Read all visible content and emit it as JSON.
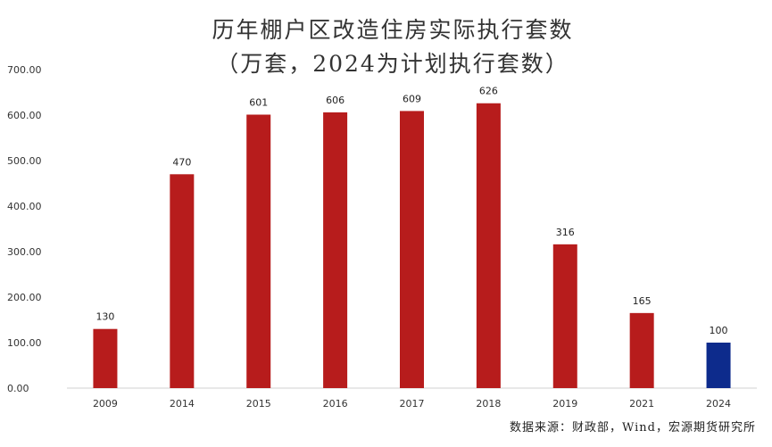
{
  "chart_data": {
    "type": "bar",
    "title": "历年棚户区改造住房实际执行套数",
    "subtitle": "（万套，2024为计划执行套数）",
    "categories": [
      "2009",
      "2014",
      "2015",
      "2016",
      "2017",
      "2018",
      "2019",
      "2021",
      "2024"
    ],
    "values": [
      130,
      470,
      601,
      606,
      609,
      626,
      316,
      165,
      100
    ],
    "data_labels": [
      "130",
      "470",
      "601",
      "606",
      "609",
      "626",
      "316",
      "165",
      "100"
    ],
    "y_ticks": [
      "0.00",
      "100.00",
      "200.00",
      "300.00",
      "400.00",
      "500.00",
      "600.00",
      "700.00"
    ],
    "ylim": [
      0,
      700
    ],
    "grid": false,
    "legend": "none",
    "colors": {
      "actual": "#b71c1c",
      "planned": "#0d2b8c",
      "axis": "#d0d0d0",
      "text": "#333333"
    },
    "planned_category": "2024",
    "source": "数据来源：财政部，Wind，宏源期货研究所"
  }
}
